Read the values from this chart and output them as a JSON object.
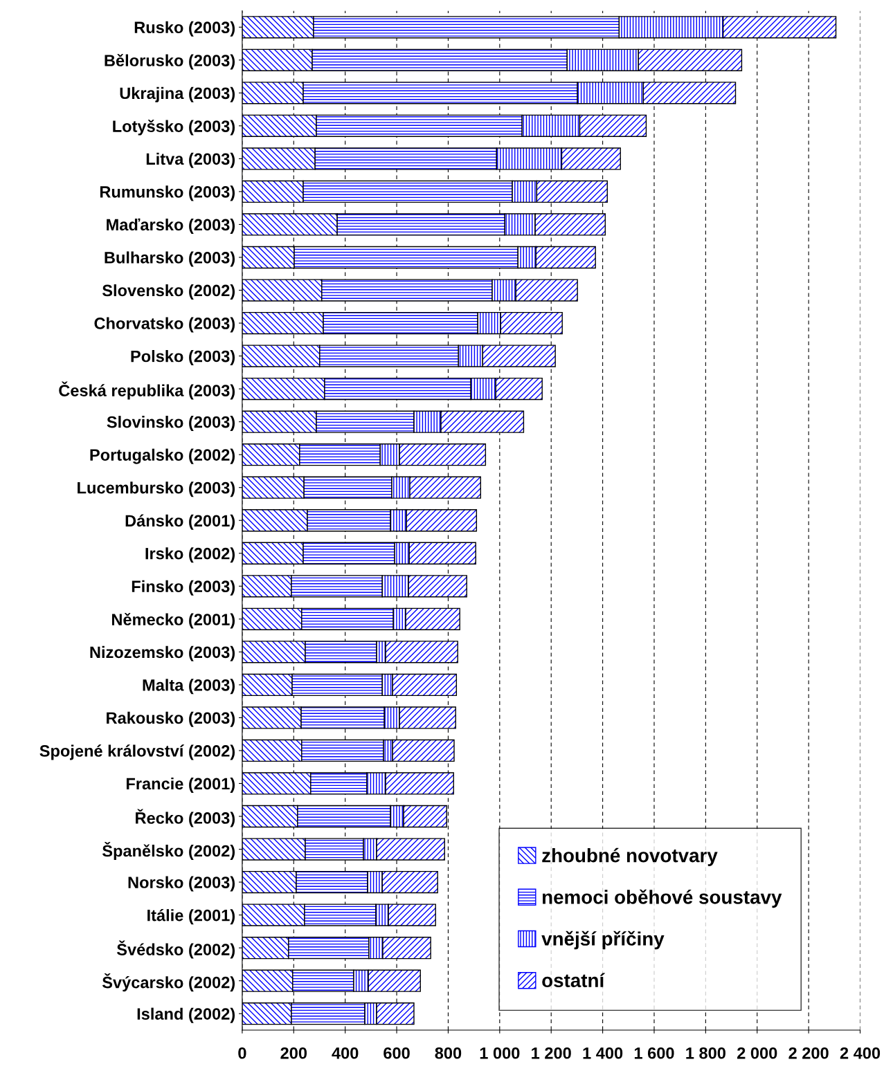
{
  "chart_data": {
    "type": "bar",
    "orientation": "horizontal",
    "stacked": true,
    "categories": [
      "Rusko (2003)",
      "Bělorusko (2003)",
      "Ukrajina (2003)",
      "Lotyšsko (2003)",
      "Litva (2003)",
      "Rumunsko (2003)",
      "Maďarsko (2003)",
      "Bulharsko (2003)",
      "Slovensko (2002)",
      "Chorvatsko (2003)",
      "Polsko (2003)",
      "Česká republika (2003)",
      "Slovinsko (2003)",
      "Portugalsko (2002)",
      "Lucembursko (2003)",
      "Dánsko (2001)",
      "Irsko (2002)",
      "Finsko (2003)",
      "Německo (2001)",
      "Nizozemsko (2003)",
      "Malta (2003)",
      "Rakousko (2003)",
      "Spojené království (2002)",
      "Francie (2001)",
      "Řecko (2003)",
      "Španělsko (2002)",
      "Norsko (2003)",
      "Itálie (2001)",
      "Švédsko (2002)",
      "Švýcarsko (2002)",
      "Island (2002)"
    ],
    "series": [
      {
        "name": "zhoubné novotvary",
        "color": "#0000ff",
        "values": [
          277,
          272,
          237,
          288,
          283,
          237,
          369,
          202,
          309,
          315,
          301,
          320,
          288,
          223,
          240,
          253,
          237,
          191,
          231,
          245,
          194,
          229,
          231,
          266,
          215,
          245,
          210,
          242,
          180,
          196,
          191
        ]
      },
      {
        "name": "nemoci oběhové soustavy",
        "color": "#0000ff",
        "values": [
          1187,
          990,
          1065,
          799,
          705,
          812,
          651,
          869,
          662,
          600,
          539,
          568,
          379,
          313,
          341,
          323,
          355,
          353,
          356,
          277,
          350,
          323,
          318,
          218,
          361,
          226,
          277,
          277,
          312,
          237,
          285
        ]
      },
      {
        "name": "vnější příčiny",
        "color": "#0000ff",
        "values": [
          404,
          277,
          256,
          224,
          253,
          95,
          118,
          70,
          92,
          89,
          94,
          97,
          105,
          75,
          70,
          62,
          57,
          102,
          48,
          35,
          40,
          59,
          35,
          73,
          51,
          51,
          57,
          49,
          54,
          57,
          46
        ]
      },
      {
        "name": "ostatní",
        "color": "#0000ff",
        "values": [
          438,
          401,
          358,
          258,
          228,
          274,
          272,
          231,
          239,
          239,
          282,
          180,
          321,
          334,
          275,
          272,
          258,
          226,
          210,
          280,
          248,
          218,
          239,
          264,
          167,
          264,
          215,
          183,
          186,
          202,
          145
        ]
      }
    ],
    "xlim": [
      0,
      2400
    ],
    "xticks": [
      0,
      200,
      400,
      600,
      800,
      {
        "value": 1000,
        "label": "1 000"
      },
      {
        "value": 1200,
        "label": "1 200"
      },
      {
        "value": 1400,
        "label": "1 400"
      },
      {
        "value": 1600,
        "label": "1 600"
      },
      {
        "value": 1800,
        "label": "1 800"
      },
      {
        "value": 2000,
        "label": "2 000"
      },
      {
        "value": 2200,
        "label": "2 200"
      },
      {
        "value": 2400,
        "label": "2 400"
      }
    ],
    "grid": "x",
    "legend": "bottom right"
  }
}
